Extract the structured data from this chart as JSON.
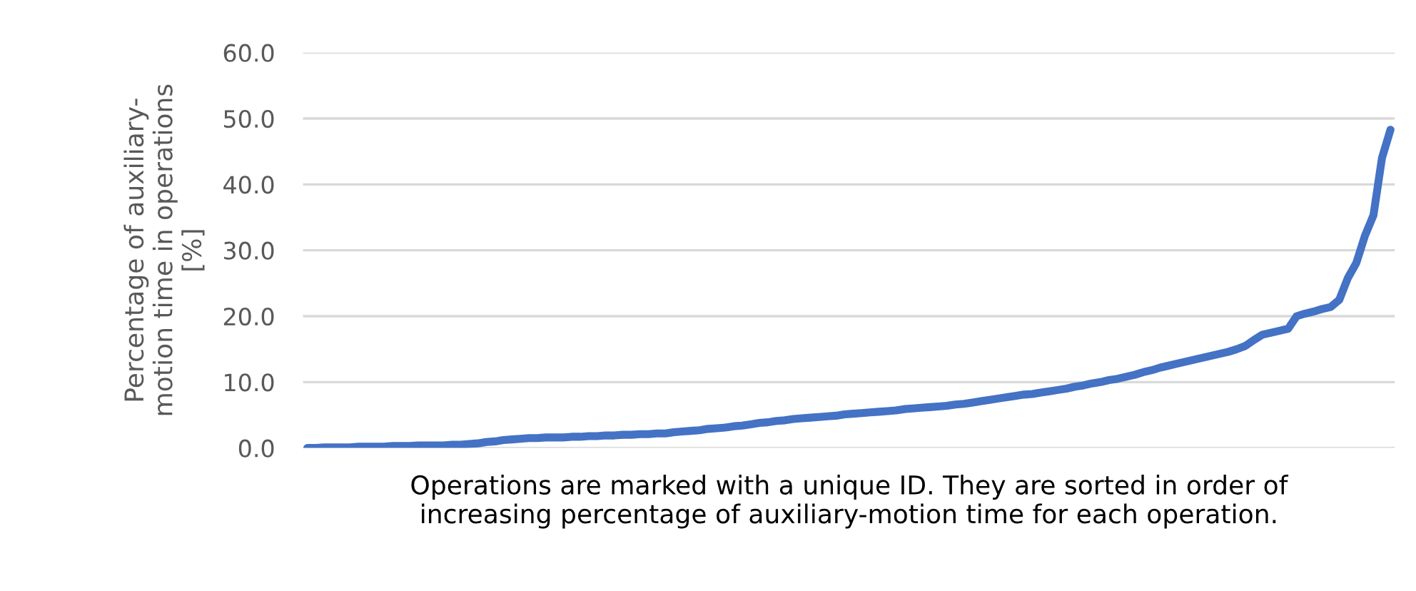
{
  "chart_data": {
    "type": "line",
    "ylabel": "Percentage of auxiliary-\nmotion time in operations\n[%]",
    "xlabel": "Operations are marked with a unique ID. They are sorted in order of\nincreasing percentage of auxiliary-motion time for each operation.",
    "categories": [
      null,
      null,
      null,
      null,
      null,
      null,
      null,
      null,
      null,
      null,
      null,
      null,
      null,
      null,
      null,
      null,
      null,
      null,
      null,
      null,
      null,
      null,
      null,
      null,
      null,
      null,
      null,
      null,
      null,
      null,
      null,
      null,
      null,
      null,
      null,
      null,
      null,
      null,
      null,
      null,
      null,
      null,
      null,
      null,
      null,
      null,
      null,
      null,
      null,
      null,
      null,
      null,
      null,
      null,
      null,
      null,
      null,
      null,
      null,
      null,
      null,
      null,
      null,
      null,
      null,
      null,
      null,
      null,
      null,
      null,
      null,
      null,
      null,
      null,
      null,
      null,
      null,
      null,
      null,
      null,
      null,
      null,
      null,
      null,
      null,
      null,
      null,
      null,
      null,
      null,
      null,
      null,
      null,
      null,
      null,
      null,
      null,
      null,
      null,
      null,
      null,
      null,
      null,
      null,
      null,
      null,
      null,
      null,
      null,
      null,
      null,
      null,
      null,
      null,
      null,
      null,
      null,
      null,
      null,
      null,
      null,
      null,
      null,
      null,
      null,
      null,
      null,
      null
    ],
    "series": [
      {
        "color": "#4472c4",
        "values": [
          0.0,
          0.0,
          0.1,
          0.1,
          0.1,
          0.1,
          0.2,
          0.2,
          0.2,
          0.2,
          0.3,
          0.3,
          0.3,
          0.4,
          0.4,
          0.4,
          0.4,
          0.5,
          0.5,
          0.6,
          0.7,
          0.9,
          1.0,
          1.2,
          1.3,
          1.4,
          1.5,
          1.5,
          1.6,
          1.6,
          1.6,
          1.7,
          1.7,
          1.8,
          1.8,
          1.9,
          1.9,
          2.0,
          2.0,
          2.1,
          2.1,
          2.2,
          2.2,
          2.4,
          2.5,
          2.6,
          2.7,
          2.9,
          3.0,
          3.1,
          3.3,
          3.4,
          3.6,
          3.8,
          3.9,
          4.1,
          4.2,
          4.4,
          4.5,
          4.6,
          4.7,
          4.8,
          4.9,
          5.1,
          5.2,
          5.3,
          5.4,
          5.5,
          5.6,
          5.7,
          5.9,
          6.0,
          6.1,
          6.2,
          6.3,
          6.4,
          6.6,
          6.7,
          6.9,
          7.1,
          7.3,
          7.5,
          7.7,
          7.9,
          8.1,
          8.2,
          8.4,
          8.6,
          8.8,
          9.0,
          9.3,
          9.5,
          9.8,
          10.0,
          10.3,
          10.5,
          10.8,
          11.1,
          11.5,
          11.8,
          12.2,
          12.5,
          12.8,
          13.1,
          13.4,
          13.7,
          14.0,
          14.3,
          14.6,
          15.0,
          15.5,
          16.4,
          17.2,
          17.5,
          17.8,
          18.1,
          20.0,
          20.4,
          20.7,
          21.1,
          21.4,
          22.5,
          25.8,
          28.1,
          32.2,
          35.3,
          44.0,
          48.3
        ]
      }
    ],
    "ylim": [
      0,
      60
    ],
    "yticks": [
      {
        "value": 0,
        "label": "0.0"
      },
      {
        "value": 10,
        "label": "10.0"
      },
      {
        "value": 20,
        "label": "20.0"
      },
      {
        "value": 30,
        "label": "30.0"
      },
      {
        "value": 40,
        "label": "40.0"
      },
      {
        "value": 50,
        "label": "50.0"
      },
      {
        "value": 60,
        "label": "60.0"
      }
    ],
    "grid": "y",
    "marker": "none",
    "line_style": "solid"
  }
}
